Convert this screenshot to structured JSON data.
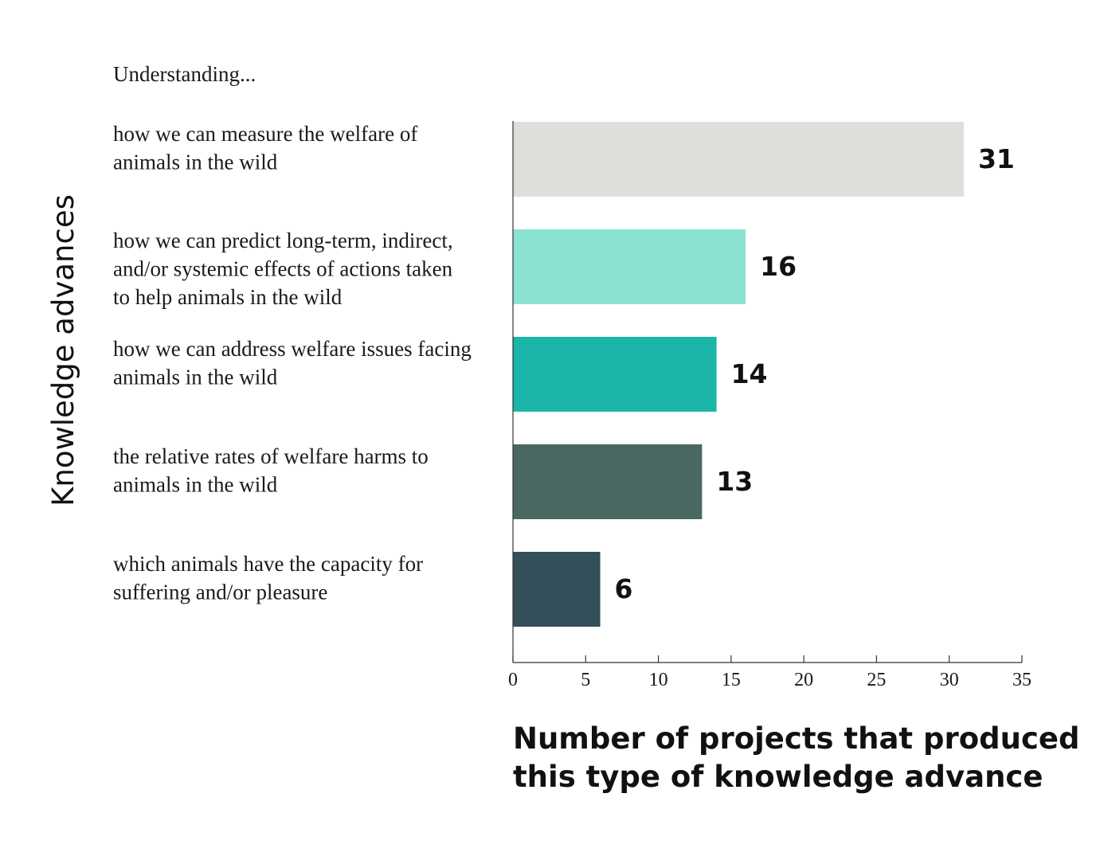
{
  "chart_data": {
    "type": "bar",
    "orientation": "horizontal",
    "header": "Understanding...",
    "ylabel": "Knowledge advances",
    "xlabel": "Number of projects that produced this type of knowledge advance",
    "xlabel_lines": [
      "Number of projects that produced",
      "this type of knowledge advance"
    ],
    "categories": [
      [
        "how we can measure the welfare of",
        "animals in the wild"
      ],
      [
        "how we can predict long-term, indirect,",
        "and/or systemic effects of actions taken",
        "to help animals in the wild"
      ],
      [
        "how we can address welfare issues facing",
        "animals in the wild"
      ],
      [
        "the relative rates of welfare harms to",
        "animals in the wild"
      ],
      [
        "which animals have the capacity for",
        "suffering and/or pleasure"
      ]
    ],
    "values": [
      31,
      16,
      14,
      13,
      6
    ],
    "colors": [
      "#dde0da",
      "#8ae3d1",
      "#1bb5aa",
      "#4a6862",
      "#334f59"
    ],
    "xlim": [
      0,
      35
    ],
    "xticks": [
      0,
      5,
      10,
      15,
      20,
      25,
      30,
      35
    ],
    "grid": false
  }
}
